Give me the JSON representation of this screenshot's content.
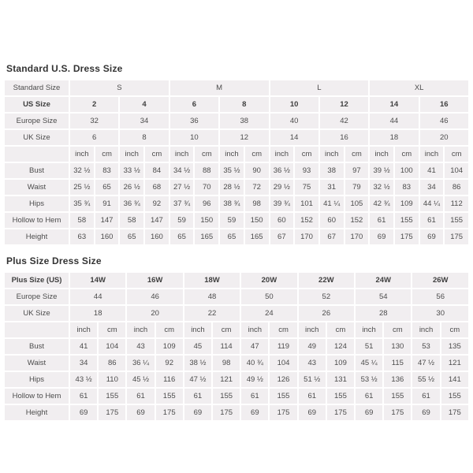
{
  "colors": {
    "page_background": "#ffffff",
    "cell_background": "#f1eef0",
    "cell_border": "#ffffff",
    "cell_text": "#4c4c4c",
    "title_text": "#333333"
  },
  "tables": [
    {
      "title": "Standard U.S. Dress Size",
      "rows": [
        {
          "label": "Standard Size",
          "span": 4,
          "bold": false,
          "values": [
            "S",
            "M",
            "L",
            "XL"
          ]
        },
        {
          "label": "US Size",
          "span": 2,
          "bold": true,
          "values": [
            "2",
            "4",
            "6",
            "8",
            "10",
            "12",
            "14",
            "16"
          ]
        },
        {
          "label": "Europe Size",
          "span": 2,
          "bold": false,
          "values": [
            "32",
            "34",
            "36",
            "38",
            "40",
            "42",
            "44",
            "46"
          ]
        },
        {
          "label": "UK Size",
          "span": 2,
          "bold": false,
          "values": [
            "6",
            "8",
            "10",
            "12",
            "14",
            "16",
            "18",
            "20"
          ]
        },
        {
          "label": "",
          "span": 1,
          "bold": false,
          "values": [
            "inch",
            "cm",
            "inch",
            "cm",
            "inch",
            "cm",
            "inch",
            "cm",
            "inch",
            "cm",
            "inch",
            "cm",
            "inch",
            "cm",
            "inch",
            "cm"
          ]
        },
        {
          "label": "Bust",
          "span": 1,
          "bold": false,
          "values": [
            "32 ½",
            "83",
            "33 ½",
            "84",
            "34 ½",
            "88",
            "35 ½",
            "90",
            "36 ½",
            "93",
            "38",
            "97",
            "39 ½",
            "100",
            "41",
            "104"
          ]
        },
        {
          "label": "Waist",
          "span": 1,
          "bold": false,
          "values": [
            "25 ½",
            "65",
            "26 ½",
            "68",
            "27 ½",
            "70",
            "28 ½",
            "72",
            "29 ½",
            "75",
            "31",
            "79",
            "32 ½",
            "83",
            "34",
            "86"
          ]
        },
        {
          "label": "Hips",
          "span": 1,
          "bold": false,
          "values": [
            "35 ¾",
            "91",
            "36 ¾",
            "92",
            "37 ¾",
            "96",
            "38 ¾",
            "98",
            "39 ¾",
            "101",
            "41 ¼",
            "105",
            "42 ¾",
            "109",
            "44 ¼",
            "112"
          ]
        },
        {
          "label": "Hollow to Hem",
          "span": 1,
          "bold": false,
          "values": [
            "58",
            "147",
            "58",
            "147",
            "59",
            "150",
            "59",
            "150",
            "60",
            "152",
            "60",
            "152",
            "61",
            "155",
            "61",
            "155"
          ]
        },
        {
          "label": "Height",
          "span": 1,
          "bold": false,
          "values": [
            "63",
            "160",
            "65",
            "160",
            "65",
            "165",
            "65",
            "165",
            "67",
            "170",
            "67",
            "170",
            "69",
            "175",
            "69",
            "175"
          ]
        }
      ]
    },
    {
      "title": "Plus Size Dress Size",
      "rows": [
        {
          "label": "Plus Size (US)",
          "span": 2,
          "bold": true,
          "values": [
            "14W",
            "16W",
            "18W",
            "20W",
            "22W",
            "24W",
            "26W"
          ]
        },
        {
          "label": "Europe Size",
          "span": 2,
          "bold": false,
          "values": [
            "44",
            "46",
            "48",
            "50",
            "52",
            "54",
            "56"
          ]
        },
        {
          "label": "UK Size",
          "span": 2,
          "bold": false,
          "values": [
            "18",
            "20",
            "22",
            "24",
            "26",
            "28",
            "30"
          ]
        },
        {
          "label": "",
          "span": 1,
          "bold": false,
          "values": [
            "inch",
            "cm",
            "inch",
            "cm",
            "inch",
            "cm",
            "inch",
            "cm",
            "inch",
            "cm",
            "inch",
            "cm",
            "inch",
            "cm"
          ]
        },
        {
          "label": "Bust",
          "span": 1,
          "bold": false,
          "values": [
            "41",
            "104",
            "43",
            "109",
            "45",
            "114",
            "47",
            "119",
            "49",
            "124",
            "51",
            "130",
            "53",
            "135"
          ]
        },
        {
          "label": "Waist",
          "span": 1,
          "bold": false,
          "values": [
            "34",
            "86",
            "36 ¼",
            "92",
            "38 ½",
            "98",
            "40 ¾",
            "104",
            "43",
            "109",
            "45 ¼",
            "115",
            "47 ½",
            "121"
          ]
        },
        {
          "label": "Hips",
          "span": 1,
          "bold": false,
          "values": [
            "43 ½",
            "110",
            "45 ½",
            "116",
            "47 ½",
            "121",
            "49 ½",
            "126",
            "51 ½",
            "131",
            "53 ½",
            "136",
            "55 ½",
            "141"
          ]
        },
        {
          "label": "Hollow to Hem",
          "span": 1,
          "bold": false,
          "values": [
            "61",
            "155",
            "61",
            "155",
            "61",
            "155",
            "61",
            "155",
            "61",
            "155",
            "61",
            "155",
            "61",
            "155"
          ]
        },
        {
          "label": "Height",
          "span": 1,
          "bold": false,
          "values": [
            "69",
            "175",
            "69",
            "175",
            "69",
            "175",
            "69",
            "175",
            "69",
            "175",
            "69",
            "175",
            "69",
            "175"
          ]
        }
      ]
    }
  ]
}
